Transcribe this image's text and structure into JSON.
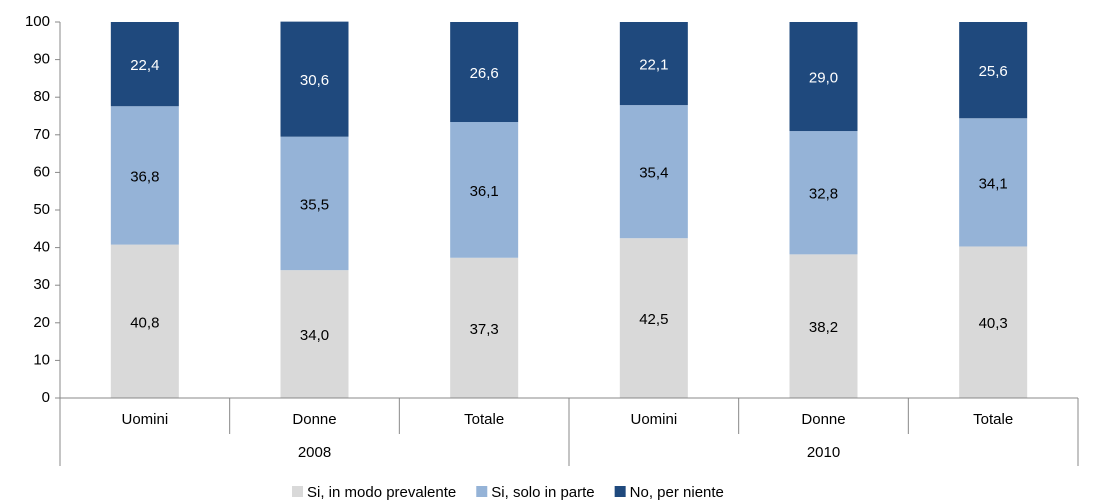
{
  "chart_data": {
    "type": "stacked_bar",
    "categories": [
      "Uomini",
      "Donne",
      "Totale",
      "Uomini",
      "Donne",
      "Totale"
    ],
    "groups": [
      "2008",
      "2010"
    ],
    "series": [
      {
        "name": "Si, in modo prevalente",
        "color": "#d9d9d9",
        "values": [
          40.8,
          34.0,
          37.3,
          42.5,
          38.2,
          40.3
        ],
        "value_labels": [
          "40,8",
          "34,0",
          "37,3",
          "42,5",
          "38,2",
          "40,3"
        ]
      },
      {
        "name": "Si, solo in parte",
        "color": "#95b3d7",
        "values": [
          36.8,
          35.5,
          36.1,
          35.4,
          32.8,
          34.1
        ],
        "value_labels": [
          "36,8",
          "35,5",
          "36,1",
          "35,4",
          "32,8",
          "34,1"
        ]
      },
      {
        "name": "No, per niente",
        "color": "#1f497d",
        "values": [
          22.4,
          30.6,
          26.6,
          22.1,
          29.0,
          25.6
        ],
        "value_labels": [
          "22,4",
          "30,6",
          "26,6",
          "22,1",
          "29,0",
          "25,6"
        ]
      }
    ],
    "ylim": [
      0,
      100
    ],
    "yticks": [
      0,
      10,
      20,
      30,
      40,
      50,
      60,
      70,
      80,
      90,
      100
    ],
    "legend": "bottom"
  }
}
